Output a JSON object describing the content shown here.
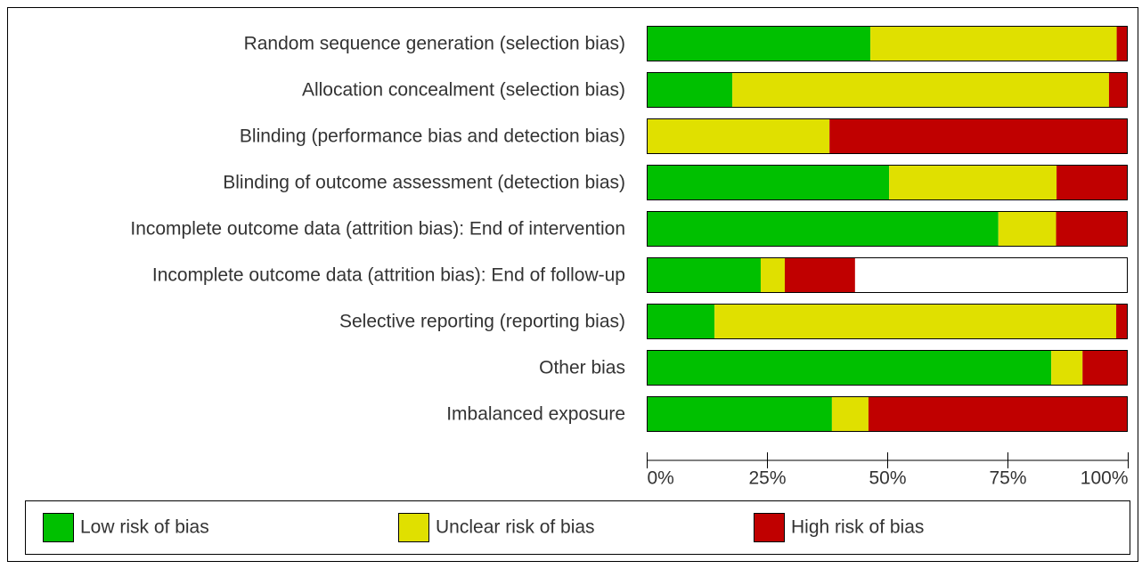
{
  "chart_data": {
    "type": "stacked-bar-horizontal",
    "categories": [
      "Random sequence generation (selection bias)",
      "Allocation concealment (selection bias)",
      "Blinding (performance bias and detection bias)",
      "Blinding of outcome assessment (detection bias)",
      "Incomplete outcome data (attrition bias): End of intervention",
      "Incomplete outcome data (attrition bias): End of follow-up",
      "Selective reporting (reporting bias)",
      "Other bias",
      "Imbalanced exposure"
    ],
    "series": [
      {
        "name": "Low risk of bias",
        "color": "#00c000",
        "values": [
          46.5,
          17.8,
          0,
          50.4,
          73.1,
          23.7,
          14.1,
          84.1,
          38.5
        ]
      },
      {
        "name": "Unclear risk of bias",
        "color": "#e0e000",
        "values": [
          51.2,
          78.3,
          38,
          34.8,
          12.0,
          5.0,
          83.5,
          6.5,
          7.6
        ]
      },
      {
        "name": "High risk of bias",
        "color": "#c00000",
        "values": [
          2.3,
          3.9,
          62,
          14.8,
          14.8,
          14.6,
          2.4,
          9.4,
          53.9
        ]
      }
    ],
    "xlim": [
      0,
      100
    ],
    "xticks": [
      {
        "value": 0,
        "label": "0%"
      },
      {
        "value": 25,
        "label": "25%"
      },
      {
        "value": 50,
        "label": "50%"
      },
      {
        "value": 75,
        "label": "75%"
      },
      {
        "value": 100,
        "label": "100%"
      }
    ]
  }
}
